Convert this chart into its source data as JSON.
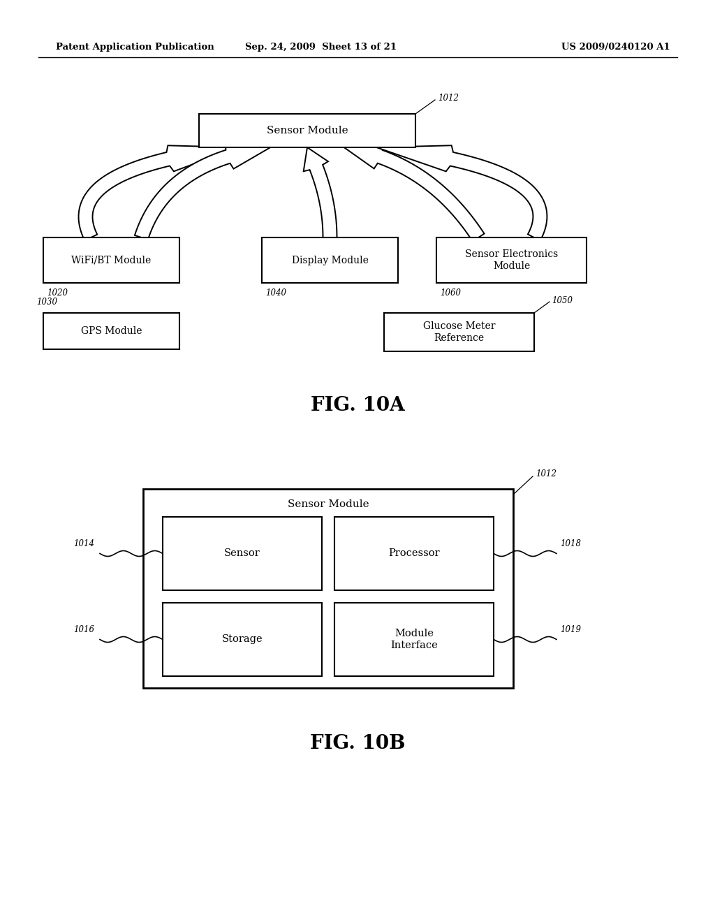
{
  "bg_color": "#ffffff",
  "header_left": "Patent Application Publication",
  "header_mid": "Sep. 24, 2009  Sheet 13 of 21",
  "header_right": "US 2009/0240120 A1",
  "fig10a_label": "FIG. 10A",
  "fig10b_label": "FIG. 10B"
}
